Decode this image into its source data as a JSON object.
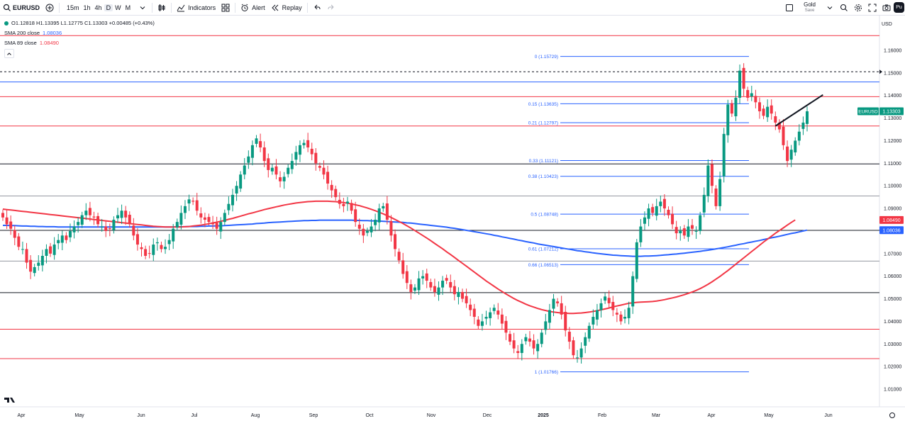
{
  "toolbar": {
    "symbol": "EURUSD",
    "intervals": [
      "15m",
      "1h",
      "4h",
      "D",
      "W",
      "M"
    ],
    "active_interval": "D",
    "indicators_label": "Indicators",
    "alert_label": "Alert",
    "replay_label": "Replay",
    "save_top": "Gold",
    "save_bottom": "Save",
    "avatar_text": "Pu"
  },
  "legend": {
    "ohlc": "O1.12818  H1.13395  L1.12775  C1.13303  +0.00485 (+0.43%)",
    "sma200_label": "SMA 200 close",
    "sma200_value": "1.08036",
    "sma89_label": "SMA 89 close",
    "sma89_value": "1.08490",
    "collapse_icon": "chevron-up-icon"
  },
  "colors": {
    "up": "#089981",
    "down": "#f23645",
    "sma200": "#2962ff",
    "sma89": "#f23645",
    "fib": "#2962ff"
  },
  "chart_data": {
    "type": "candlestick",
    "currency": "USD",
    "symbol_tag": "EURUSD",
    "last_price": "1.13303",
    "sma89_tag": "1.08490",
    "sma200_tag": "1.08036",
    "y_range": [
      1.0,
      1.17
    ],
    "y_ticks": [
      "1.16000",
      "1.15000",
      "1.14000",
      "1.13000",
      "1.12000",
      "1.11000",
      "1.10000",
      "1.09000",
      "1.08000",
      "1.07000",
      "1.06000",
      "1.05000",
      "1.04000",
      "1.03000",
      "1.02000",
      "1.01000"
    ],
    "x_labels": [
      "Apr",
      "May",
      "Jun",
      "Jul",
      "Aug",
      "Sep",
      "Oct",
      "Nov",
      "Dec",
      "2025",
      "Feb",
      "Mar",
      "Apr",
      "May",
      "Jun"
    ],
    "closes": [
      1.086,
      1.083,
      1.081,
      1.077,
      1.073,
      1.072,
      1.066,
      1.062,
      1.064,
      1.066,
      1.069,
      1.072,
      1.07,
      1.074,
      1.076,
      1.078,
      1.076,
      1.08,
      1.082,
      1.084,
      1.087,
      1.089,
      1.087,
      1.086,
      1.083,
      1.082,
      1.08,
      1.081,
      1.085,
      1.087,
      1.089,
      1.086,
      1.083,
      1.078,
      1.074,
      1.072,
      1.069,
      1.07,
      1.074,
      1.075,
      1.072,
      1.073,
      1.076,
      1.081,
      1.084,
      1.088,
      1.091,
      1.094,
      1.093,
      1.089,
      1.086,
      1.085,
      1.084,
      1.083,
      1.081,
      1.084,
      1.088,
      1.092,
      1.096,
      1.1,
      1.105,
      1.109,
      1.113,
      1.118,
      1.121,
      1.117,
      1.111,
      1.107,
      1.108,
      1.105,
      1.102,
      1.104,
      1.108,
      1.111,
      1.115,
      1.118,
      1.119,
      1.117,
      1.114,
      1.11,
      1.108,
      1.105,
      1.101,
      1.098,
      1.095,
      1.092,
      1.091,
      1.093,
      1.089,
      1.084,
      1.081,
      1.078,
      1.08,
      1.082,
      1.085,
      1.09,
      1.091,
      1.085,
      1.078,
      1.072,
      1.067,
      1.061,
      1.057,
      1.053,
      1.055,
      1.059,
      1.06,
      1.058,
      1.055,
      1.053,
      1.055,
      1.058,
      1.058,
      1.055,
      1.052,
      1.053,
      1.05,
      1.048,
      1.045,
      1.042,
      1.038,
      1.04,
      1.042,
      1.044,
      1.046,
      1.043,
      1.039,
      1.035,
      1.031,
      1.028,
      1.026,
      1.03,
      1.033,
      1.031,
      1.028,
      1.03,
      1.035,
      1.04,
      1.045,
      1.05,
      1.048,
      1.043,
      1.036,
      1.031,
      1.025,
      1.024,
      1.028,
      1.033,
      1.038,
      1.042,
      1.045,
      1.048,
      1.051,
      1.048,
      1.045,
      1.043,
      1.04,
      1.042,
      1.046,
      1.06,
      1.075,
      1.082,
      1.086,
      1.09,
      1.088,
      1.091,
      1.093,
      1.09,
      1.087,
      1.083,
      1.079,
      1.08,
      1.078,
      1.082,
      1.081,
      1.08,
      1.087,
      1.096,
      1.109,
      1.1,
      1.091,
      1.103,
      1.123,
      1.136,
      1.132,
      1.139,
      1.151,
      1.143,
      1.139,
      1.141,
      1.137,
      1.133,
      1.131,
      1.135,
      1.132,
      1.128,
      1.125,
      1.118,
      1.111,
      1.116,
      1.12,
      1.124,
      1.128,
      1.133
    ],
    "sma200": [
      1.0825,
      1.0825,
      1.0824,
      1.0824,
      1.0823,
      1.0822,
      1.0822,
      1.0821,
      1.0821,
      1.082,
      1.082,
      1.0819,
      1.0819,
      1.0819,
      1.0818,
      1.0818,
      1.0818,
      1.0818,
      1.0818,
      1.0818,
      1.0818,
      1.0818,
      1.0818,
      1.0818,
      1.0818,
      1.0818,
      1.0818,
      1.0818,
      1.0818,
      1.0818,
      1.0818,
      1.0818,
      1.0818,
      1.0818,
      1.0818,
      1.0818,
      1.0818,
      1.0818,
      1.0818,
      1.0818,
      1.0818,
      1.0818,
      1.0818,
      1.0818,
      1.0819,
      1.0819,
      1.0819,
      1.082,
      1.082,
      1.082,
      1.0821,
      1.0821,
      1.0822,
      1.0822,
      1.0823,
      1.0823,
      1.0824,
      1.0825,
      1.0826,
      1.0827,
      1.0828,
      1.0829,
      1.083,
      1.0831,
      1.0833,
      1.0834,
      1.0835,
      1.0837,
      1.0838,
      1.0839,
      1.084,
      1.0841,
      1.0842,
      1.0843,
      1.0844,
      1.0845,
      1.0846,
      1.0846,
      1.0847,
      1.0847,
      1.0848,
      1.0848,
      1.0848,
      1.0848,
      1.0848,
      1.0848,
      1.0848,
      1.0848,
      1.0848,
      1.0847,
      1.0847,
      1.0846,
      1.0846,
      1.0845,
      1.0845,
      1.0844,
      1.0843,
      1.0842,
      1.0841,
      1.084,
      1.0839,
      1.0838,
      1.0836,
      1.0835,
      1.0833,
      1.0831,
      1.0829,
      1.0827,
      1.0825,
      1.0823,
      1.0821,
      1.0819,
      1.0817,
      1.0814,
      1.0812,
      1.0809,
      1.0806,
      1.0803,
      1.08,
      1.0797,
      1.0794,
      1.0791,
      1.0788,
      1.0785,
      1.0781,
      1.0778,
      1.0774,
      1.0771,
      1.0767,
      1.0764,
      1.076,
      1.0757,
      1.0753,
      1.075,
      1.0747,
      1.0743,
      1.074,
      1.0737,
      1.0734,
      1.0731,
      1.0728,
      1.0725,
      1.0722,
      1.0719,
      1.0716,
      1.0713,
      1.0711,
      1.0708,
      1.0706,
      1.0703,
      1.0701,
      1.0699,
      1.0697,
      1.0695,
      1.0693,
      1.0692,
      1.0691,
      1.069,
      1.0689,
      1.0688,
      1.0688,
      1.0688,
      1.0689,
      1.0689,
      1.069,
      1.0691,
      1.0692,
      1.0694,
      1.0695,
      1.0697,
      1.0698,
      1.07,
      1.0702,
      1.0704,
      1.0706,
      1.0708,
      1.071,
      1.0713,
      1.0715,
      1.0718,
      1.0721,
      1.0724,
      1.0727,
      1.073,
      1.0734,
      1.0737,
      1.0741,
      1.0744,
      1.0748,
      1.0751,
      1.0755,
      1.0758,
      1.0762,
      1.0766,
      1.077,
      1.0773,
      1.0777,
      1.0781,
      1.0785,
      1.0789,
      1.0792,
      1.0796,
      1.08,
      1.0804
    ],
    "sma89": [
      1.0897,
      1.0895,
      1.0893,
      1.0891,
      1.0889,
      1.0887,
      1.0885,
      1.0883,
      1.0881,
      1.0879,
      1.0877,
      1.0875,
      1.0873,
      1.0871,
      1.0869,
      1.0867,
      1.0865,
      1.0863,
      1.0861,
      1.0859,
      1.0857,
      1.0855,
      1.0853,
      1.0851,
      1.0849,
      1.0847,
      1.0845,
      1.0843,
      1.0841,
      1.0839,
      1.0837,
      1.0835,
      1.0833,
      1.0831,
      1.0829,
      1.0827,
      1.0825,
      1.0823,
      1.0821,
      1.082,
      1.0819,
      1.0818,
      1.0818,
      1.0818,
      1.0818,
      1.0818,
      1.0819,
      1.082,
      1.0822,
      1.0824,
      1.0826,
      1.0829,
      1.0832,
      1.0836,
      1.0839,
      1.0843,
      1.0847,
      1.0852,
      1.0856,
      1.0861,
      1.0866,
      1.0871,
      1.0876,
      1.088,
      1.0885,
      1.089,
      1.0895,
      1.0899,
      1.0903,
      1.0907,
      1.0911,
      1.0915,
      1.0918,
      1.0921,
      1.0924,
      1.0926,
      1.0928,
      1.093,
      1.0931,
      1.0932,
      1.0932,
      1.0932,
      1.0932,
      1.0931,
      1.093,
      1.0928,
      1.0926,
      1.0923,
      1.092,
      1.0916,
      1.0912,
      1.0907,
      1.0902,
      1.0896,
      1.089,
      1.0883,
      1.0876,
      1.0868,
      1.086,
      1.0851,
      1.0842,
      1.0833,
      1.0823,
      1.0813,
      1.0802,
      1.0791,
      1.078,
      1.0769,
      1.0757,
      1.0745,
      1.0733,
      1.0721,
      1.0708,
      1.0696,
      1.0683,
      1.067,
      1.0657,
      1.0644,
      1.0631,
      1.0618,
      1.0605,
      1.0592,
      1.0579,
      1.0567,
      1.0555,
      1.0543,
      1.0532,
      1.0521,
      1.0511,
      1.0501,
      1.0492,
      1.0484,
      1.0476,
      1.0469,
      1.0463,
      1.0457,
      1.0452,
      1.0448,
      1.0444,
      1.0441,
      1.0439,
      1.0437,
      1.0436,
      1.0435,
      1.0435,
      1.0436,
      1.0437,
      1.0439,
      1.0441,
      1.0444,
      1.0447,
      1.0451,
      1.0455,
      1.0459,
      1.0464,
      1.0468,
      1.0472,
      1.0476,
      1.048,
      1.0482,
      1.0484,
      1.0485,
      1.0486,
      1.0487,
      1.0488,
      1.049,
      1.0493,
      1.0496,
      1.05,
      1.0504,
      1.0508,
      1.0513,
      1.0518,
      1.0524,
      1.053,
      1.0537,
      1.0545,
      1.0554,
      1.0564,
      1.0575,
      1.0587,
      1.0599,
      1.0612,
      1.0625,
      1.0639,
      1.0653,
      1.0667,
      1.0681,
      1.0695,
      1.0709,
      1.0723,
      1.0737,
      1.0751,
      1.0764,
      1.0777,
      1.079,
      1.0802,
      1.0814,
      1.0826,
      1.0838,
      1.0849
    ],
    "horizontal_levels": [
      {
        "price": 1.1665,
        "color": "#f23645",
        "style": "solid"
      },
      {
        "price": 1.1505,
        "color": "#131722",
        "style": "dashed"
      },
      {
        "price": 1.146,
        "color": "#2962ff",
        "style": "solid"
      },
      {
        "price": 1.1395,
        "color": "#f23645",
        "style": "solid"
      },
      {
        "price": 1.1265,
        "color": "#f23645",
        "style": "solid"
      },
      {
        "price": 1.1097,
        "color": "#131722",
        "style": "solid"
      },
      {
        "price": 1.0955,
        "color": "#9598a1",
        "style": "solid"
      },
      {
        "price": 1.0803,
        "color": "#131722",
        "style": "solid"
      },
      {
        "price": 1.0667,
        "color": "#9598a1",
        "style": "solid"
      },
      {
        "price": 1.0527,
        "color": "#131722",
        "style": "solid"
      },
      {
        "price": 1.0365,
        "color": "#f23645",
        "style": "solid"
      },
      {
        "price": 1.0235,
        "color": "#f23645",
        "style": "solid"
      }
    ],
    "fib_levels": [
      {
        "label": "0 (1.15729)",
        "price": 1.15729
      },
      {
        "label": "0.15 (1.13635)",
        "price": 1.13635
      },
      {
        "label": "0.21 (1.12797)",
        "price": 1.12797
      },
      {
        "label": "0.33 (1.11121)",
        "price": 1.11121
      },
      {
        "label": "0.38 (1.10423)",
        "price": 1.10423
      },
      {
        "label": "0.5 (1.08748)",
        "price": 1.08748
      },
      {
        "label": "0.61 (1.07212)",
        "price": 1.07212
      },
      {
        "label": "0.66 (1.06513)",
        "price": 1.06513
      },
      {
        "label": "1 (1.01766)",
        "price": 1.01766
      }
    ],
    "trendline": {
      "from_bar": 195,
      "from_price": 1.1265,
      "to_bar": 207,
      "to_price": 1.1403
    }
  }
}
